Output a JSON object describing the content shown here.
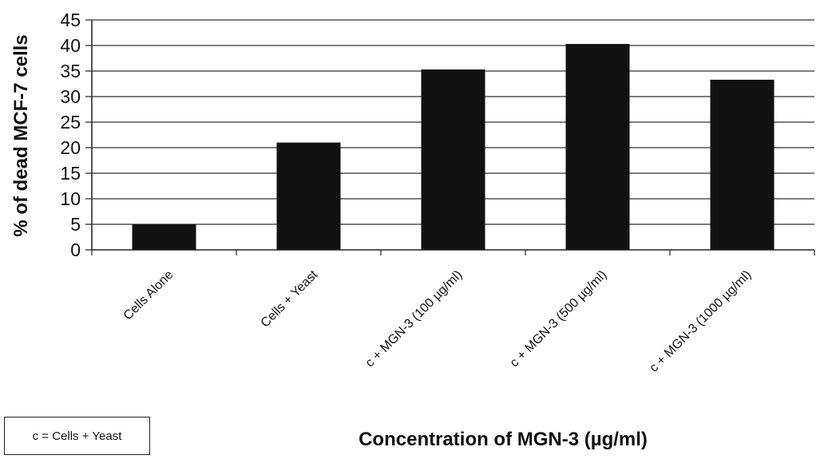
{
  "chart_data": {
    "type": "bar",
    "title": "",
    "xlabel": "Concentration of MGN-3 (µg/ml)",
    "ylabel": "% of dead MCF-7 cells",
    "categories": [
      "Cells Alone",
      "Cells + Yeast",
      "c + MGN-3 (100 µg/ml)",
      "c + MGN-3 (500 µg/ml)",
      "c + MGN-3 (1000 µg/ml)"
    ],
    "values": [
      5,
      21,
      35.3,
      40.3,
      33.3
    ],
    "ylim": [
      0,
      45
    ],
    "yticks": [
      0,
      5,
      10,
      15,
      20,
      25,
      30,
      35,
      40,
      45
    ],
    "grid": true,
    "bar_color": "#111111"
  },
  "legend_note": "c = Cells + Yeast"
}
